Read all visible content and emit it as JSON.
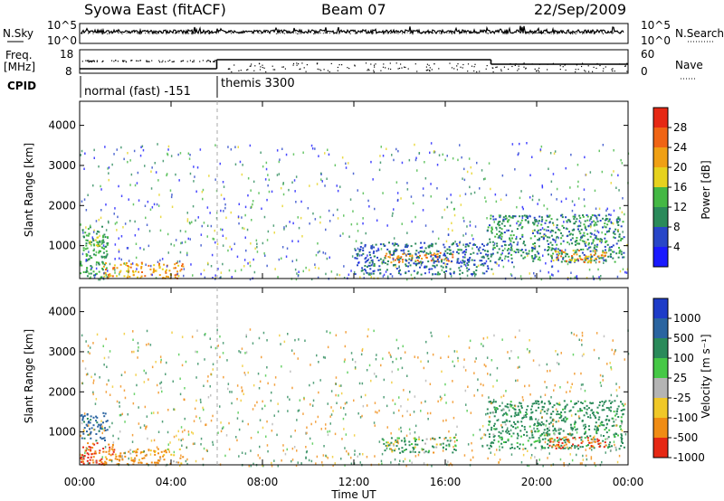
{
  "header": {
    "title": "Syowa East (fitACF)",
    "beam": "Beam 07",
    "date": "22/Sep/2009"
  },
  "noise_panel": {
    "left_label": "N.Sky",
    "right_label": "N.Search",
    "left_ticks": [
      "10^5",
      "10^0"
    ],
    "right_ticks": [
      "10^5",
      "10^0"
    ]
  },
  "freq_panel": {
    "left_label_line1": "Freq.",
    "left_label_line2": "[MHz]",
    "right_label": "Nave",
    "left_ticks": [
      "18",
      "8"
    ],
    "right_ticks": [
      "60",
      "0"
    ],
    "cpid_label": "CPID",
    "modes": [
      {
        "label": "normal (fast) -151",
        "start_hour": 0
      },
      {
        "label": "themis 3300",
        "start_hour": 6
      }
    ]
  },
  "time_axis": {
    "label": "Time UT",
    "ticks": [
      "00:00",
      "04:00",
      "08:00",
      "12:00",
      "16:00",
      "20:00",
      "00:00"
    ]
  },
  "range_axis": {
    "label": "Slant Range [km]",
    "ticks": [
      "1000",
      "2000",
      "3000",
      "4000"
    ]
  },
  "power_scale": {
    "label": "Power [dB]",
    "ticks": [
      "4",
      "8",
      "12",
      "16",
      "20",
      "24",
      "28"
    ],
    "colors": [
      "#1a1aff",
      "#2846c8",
      "#2a8a5a",
      "#44b844",
      "#e6d21e",
      "#f0a014",
      "#f06414",
      "#e62814"
    ]
  },
  "velocity_scale": {
    "label": "Velocity [m s⁻¹]",
    "ticks": [
      "1000",
      "500",
      "100",
      "25",
      "-25",
      "-100",
      "-500",
      "-1000"
    ],
    "colors": [
      "#1e3cc8",
      "#2a64a0",
      "#2a8a5a",
      "#46c846",
      "#b4b4b4",
      "#f0c828",
      "#f08c14",
      "#e62814"
    ]
  },
  "chart_data": [
    {
      "type": "heatmap",
      "title": "Power [dB]",
      "xlabel": "Time UT",
      "ylabel": "Slant Range [km]",
      "xlim": [
        0,
        24
      ],
      "ylim": [
        180,
        4600
      ],
      "zlim": [
        0,
        30
      ],
      "echo_regions": [
        {
          "t0": 0.0,
          "t1": 1.2,
          "r0": 200,
          "r1": 1500,
          "z": 12
        },
        {
          "t0": 1.0,
          "t1": 4.5,
          "r0": 200,
          "r1": 600,
          "z": 22
        },
        {
          "t0": 0.2,
          "t1": 0.8,
          "r0": 1000,
          "r1": 1300,
          "z": 16
        },
        {
          "t0": 13.2,
          "t1": 16.5,
          "r0": 600,
          "r1": 850,
          "z": 24
        },
        {
          "t0": 12.0,
          "t1": 18.0,
          "r0": 300,
          "r1": 1100,
          "z": 8
        },
        {
          "t0": 17.8,
          "t1": 23.8,
          "r0": 600,
          "r1": 1800,
          "z": 10
        },
        {
          "t0": 20.5,
          "t1": 23.0,
          "r0": 600,
          "r1": 900,
          "z": 22
        }
      ]
    },
    {
      "type": "heatmap",
      "title": "Velocity [m s⁻¹]",
      "xlabel": "Time UT",
      "ylabel": "Slant Range [km]",
      "xlim": [
        0,
        24
      ],
      "ylim": [
        180,
        4600
      ],
      "zlim": [
        -1000,
        1000
      ],
      "echo_regions": [
        {
          "t0": 0.0,
          "t1": 1.2,
          "r0": 800,
          "r1": 1500,
          "z": 400
        },
        {
          "t0": 0.0,
          "t1": 1.5,
          "r0": 200,
          "r1": 800,
          "z": -300
        },
        {
          "t0": 1.0,
          "t1": 4.5,
          "r0": 200,
          "r1": 600,
          "z": -120
        },
        {
          "t0": 13.2,
          "t1": 16.5,
          "r0": 500,
          "r1": 900,
          "z": 80
        },
        {
          "t0": 17.8,
          "t1": 23.8,
          "r0": 600,
          "r1": 1800,
          "z": 150
        },
        {
          "t0": 20.5,
          "t1": 23.0,
          "r0": 600,
          "r1": 900,
          "z": -300
        }
      ]
    }
  ]
}
